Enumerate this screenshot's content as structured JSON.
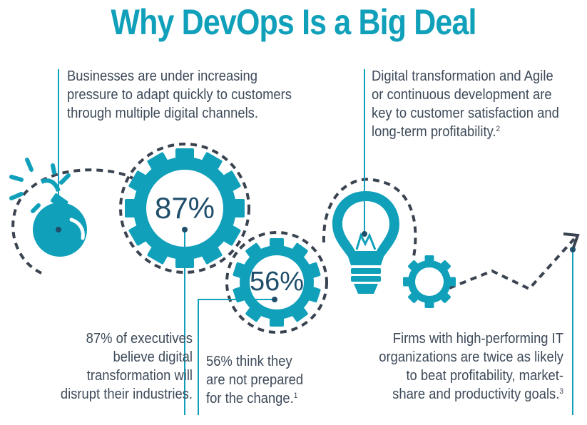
{
  "title": "Why DevOps Is a Big Deal",
  "stat1": {
    "value": "87%",
    "text": [
      "87% of executives",
      "believe digital",
      "transformation will",
      "disrupt their industries."
    ]
  },
  "stat2": {
    "value": "56%",
    "text": [
      "56% think they",
      "are not prepared",
      "for the change."
    ],
    "ref": "1"
  },
  "point1": {
    "text": [
      "Businesses are under increasing",
      "pressure to adapt quickly to customers",
      "through multiple digital channels."
    ]
  },
  "point2": {
    "text": [
      "Digital transformation and Agile",
      "or continuous development are",
      "key to customer satisfaction and",
      "long-term profitability."
    ],
    "ref": "2"
  },
  "point3": {
    "text": [
      "Firms with high-performing IT",
      "organizations are twice as likely",
      "to beat profitability, market-",
      "share and productivity goals."
    ],
    "ref": "3"
  },
  "colors": {
    "accent": "#10a0ba",
    "text": "#3d4a59",
    "dashes": "#3a4350",
    "number": "#1f4e6b"
  },
  "icons": [
    "bomb-icon",
    "gear-icon",
    "lightbulb-icon",
    "arrow-icon"
  ]
}
